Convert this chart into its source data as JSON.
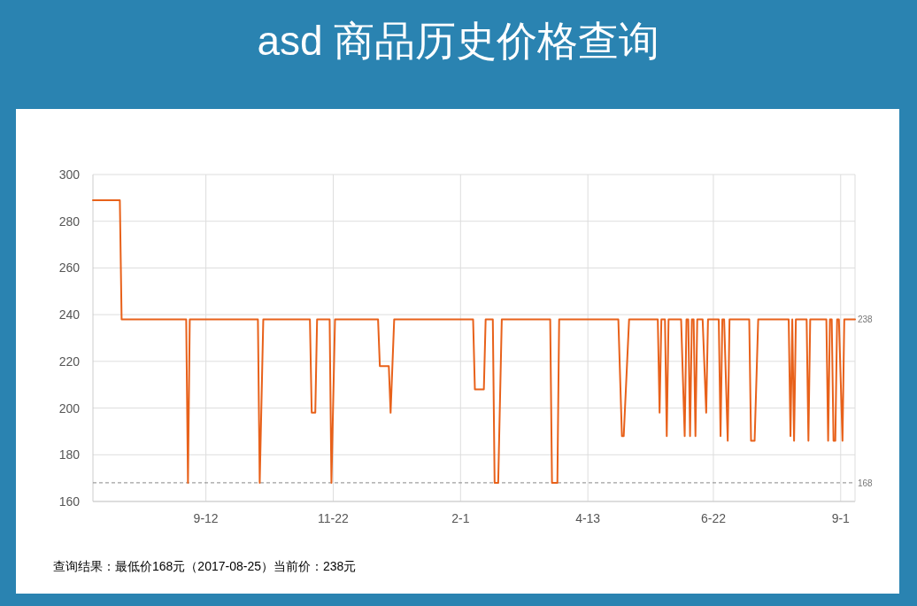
{
  "chart_data": {
    "type": "line",
    "title": "asd 商品历史价格查询",
    "x": [
      "2016-07-11",
      "2016-07-26",
      "2016-07-27",
      "2016-09-01",
      "2016-09-02",
      "2016-09-03",
      "2016-10-11",
      "2016-10-12",
      "2016-10-14",
      "2016-11-09",
      "2016-11-10",
      "2016-11-12",
      "2016-11-13",
      "2016-11-20",
      "2016-11-21",
      "2016-11-23",
      "2016-12-17",
      "2016-12-18",
      "2016-12-23",
      "2016-12-24",
      "2016-12-26",
      "2017-02-08",
      "2017-02-09",
      "2017-02-14",
      "2017-02-15",
      "2017-02-19",
      "2017-02-20",
      "2017-02-22",
      "2017-02-24",
      "2017-03-23",
      "2017-03-24",
      "2017-03-27",
      "2017-03-28",
      "2017-04-30",
      "2017-05-02",
      "2017-05-03",
      "2017-05-06",
      "2017-05-22",
      "2017-05-23",
      "2017-05-24",
      "2017-05-26",
      "2017-05-27",
      "2017-05-28",
      "2017-06-04",
      "2017-06-06",
      "2017-06-07",
      "2017-06-08",
      "2017-06-09",
      "2017-06-10",
      "2017-06-11",
      "2017-06-12",
      "2017-06-13",
      "2017-06-16",
      "2017-06-18",
      "2017-06-19",
      "2017-06-25",
      "2017-06-26",
      "2017-06-27",
      "2017-06-28",
      "2017-06-30",
      "2017-07-01",
      "2017-07-12",
      "2017-07-13",
      "2017-07-15",
      "2017-07-17",
      "2017-08-03",
      "2017-08-04",
      "2017-08-05",
      "2017-08-06",
      "2017-08-07",
      "2017-08-13",
      "2017-08-14",
      "2017-08-15",
      "2017-08-24",
      "2017-08-25",
      "2017-08-26",
      "2017-08-27",
      "2017-08-28",
      "2017-08-29",
      "2017-08-30",
      "2017-08-31",
      "2017-09-02",
      "2017-09-03",
      "2017-09-09"
    ],
    "series": [
      {
        "color": "#e8611a",
        "values": [
          289,
          289,
          238,
          238,
          168,
          238,
          238,
          168,
          238,
          238,
          198,
          198,
          238,
          238,
          168,
          238,
          238,
          218,
          218,
          198,
          238,
          238,
          208,
          208,
          238,
          238,
          168,
          168,
          238,
          238,
          168,
          168,
          238,
          238,
          188,
          188,
          238,
          238,
          198,
          238,
          238,
          188,
          238,
          238,
          188,
          238,
          238,
          188,
          238,
          238,
          188,
          238,
          238,
          198,
          238,
          238,
          188,
          238,
          238,
          186,
          238,
          238,
          186,
          186,
          238,
          238,
          188,
          238,
          186,
          238,
          238,
          186,
          238,
          238,
          186,
          238,
          238,
          186,
          186,
          238,
          238,
          186,
          238,
          238
        ]
      }
    ],
    "xlim": [
      "2016-07-11",
      "2017-09-09"
    ],
    "xticks": [
      {
        "value": "2016-09-12",
        "label": "9-12"
      },
      {
        "value": "2016-11-22",
        "label": "11-22"
      },
      {
        "value": "2017-02-01",
        "label": "2-1"
      },
      {
        "value": "2017-04-13",
        "label": "4-13"
      },
      {
        "value": "2017-06-22",
        "label": "6-22"
      },
      {
        "value": "2017-09-01",
        "label": "9-1"
      }
    ],
    "ylim": [
      160,
      300
    ],
    "yticks": [
      160,
      180,
      200,
      220,
      240,
      260,
      280,
      300
    ],
    "grid": true,
    "ref_lines": [
      {
        "axis": "y",
        "value": 168,
        "label": "168",
        "color": "#888888",
        "line_style": "dashed"
      }
    ],
    "annotations": [
      {
        "text": "238",
        "x": "2017-09-09",
        "y": 238
      },
      "查询结果：最低价168元（2017-08-25）当前价：238元"
    ]
  }
}
